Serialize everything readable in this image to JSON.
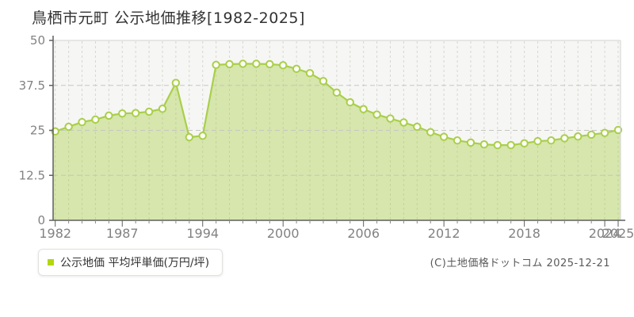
{
  "page": {
    "title": "鳥栖市元町 公示地価推移[1982-2025]",
    "footer_credit": "(C)土地価格ドットコム 2025-12-21"
  },
  "legend": {
    "label": "公示地価 平均坪単価(万円/坪)"
  },
  "colors": {
    "accent": "#a9cf4a",
    "area_fill": "#a9cf4a",
    "area_fill_opacity": 0.42,
    "legend_marker": "#b2d70d",
    "marker_fill": "#fdfdf7",
    "plot_background": "#f6f6f4",
    "grid_vertical": "#d6d6d2",
    "grid_horizontal": "#c6c6c2",
    "plot_border": "#d3d3cf",
    "axis": "#5f5f5f",
    "tick_minor": "#8a8a8a",
    "tick_text": "#828282",
    "title_text": "#333333"
  },
  "chart_data": {
    "type": "area",
    "title": "鳥栖市元町 公示地価推移[1982-2025]",
    "series_name": "公示地価 平均坪単価",
    "unit": "万円/坪",
    "x": [
      "1982",
      "1983",
      "1984",
      "1985",
      "1986",
      "1987",
      "1989",
      "1990",
      "1991",
      "1992",
      "1993",
      "1994",
      "1995",
      "1996",
      "1997",
      "1998",
      "1999",
      "2000",
      "2001",
      "2002",
      "2003",
      "2004",
      "2005",
      "2006",
      "2007",
      "2008",
      "2009",
      "2010",
      "2011",
      "2012",
      "2013",
      "2014",
      "2015",
      "2016",
      "2017",
      "2018",
      "2019",
      "2020",
      "2021",
      "2022",
      "2023",
      "2024",
      "2025"
    ],
    "values": [
      24.7,
      26.0,
      27.3,
      28.0,
      29.1,
      29.7,
      29.8,
      30.2,
      31.0,
      38.2,
      23.1,
      23.5,
      43.2,
      43.4,
      43.5,
      43.5,
      43.4,
      43.1,
      42.1,
      40.9,
      38.7,
      35.5,
      32.8,
      30.9,
      29.4,
      28.3,
      27.2,
      26.0,
      24.5,
      23.2,
      22.2,
      21.6,
      21.1,
      20.9,
      20.9,
      21.4,
      22.0,
      22.2,
      22.8,
      23.3,
      23.8,
      24.3,
      25.1
    ],
    "ylim": [
      0,
      50
    ],
    "yticks": [
      0,
      12.5,
      25,
      37.5,
      50
    ],
    "ytick_labels": [
      "0",
      "12.5",
      "25",
      "37.5",
      "50"
    ],
    "xtick_indices": [
      0,
      5,
      11,
      17,
      23,
      29,
      35,
      41,
      42
    ],
    "xtick_labels": [
      "1982",
      "1987",
      "1994",
      "2000",
      "2006",
      "2012",
      "2018",
      "2024",
      "2025"
    ],
    "grid": true,
    "legend_position": "bottom-left"
  }
}
